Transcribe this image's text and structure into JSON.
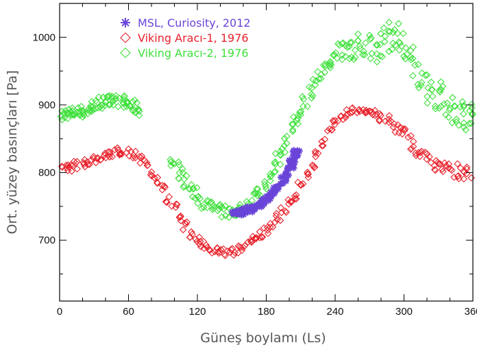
{
  "chart_data": {
    "type": "scatter",
    "title": "",
    "xlabel": "Güneş boylamı (Ls)",
    "ylabel": "Ort. yüzey basınçları [Pa]",
    "xlim": [
      0,
      360
    ],
    "ylim": [
      610,
      1050
    ],
    "xticks": [
      0,
      60,
      120,
      180,
      240,
      300,
      360
    ],
    "yticks": [
      700,
      800,
      900,
      1000
    ],
    "grid": false,
    "legend": "top-left",
    "series": [
      {
        "name": "MSL, Curiosity, 2012",
        "color": "#6a44d8",
        "marker": "asterisk",
        "points": [
          [
            153,
            740
          ],
          [
            156,
            741
          ],
          [
            159,
            742
          ],
          [
            162,
            743
          ],
          [
            165,
            745
          ],
          [
            168,
            747
          ],
          [
            171,
            749
          ],
          [
            174,
            752
          ],
          [
            177,
            755
          ],
          [
            180,
            759
          ],
          [
            183,
            764
          ],
          [
            186,
            769
          ],
          [
            189,
            775
          ],
          [
            192,
            782
          ],
          [
            195,
            790
          ],
          [
            198,
            799
          ],
          [
            201,
            808
          ],
          [
            203,
            816
          ],
          [
            205,
            823
          ],
          [
            206,
            829
          ]
        ]
      },
      {
        "name": "Viking Aracı-1, 1976",
        "color": "#e8202a",
        "marker": "diamond",
        "points": [
          [
            0,
            805
          ],
          [
            5,
            806
          ],
          [
            10,
            808
          ],
          [
            15,
            811
          ],
          [
            20,
            814
          ],
          [
            25,
            817
          ],
          [
            30,
            820
          ],
          [
            35,
            823
          ],
          [
            40,
            826
          ],
          [
            45,
            829
          ],
          [
            50,
            831
          ],
          [
            55,
            831
          ],
          [
            60,
            829
          ],
          [
            65,
            826
          ],
          [
            70,
            820
          ],
          [
            75,
            812
          ],
          [
            80,
            801
          ],
          [
            85,
            789
          ],
          [
            90,
            776
          ],
          [
            95,
            762
          ],
          [
            100,
            748
          ],
          [
            105,
            734
          ],
          [
            110,
            721
          ],
          [
            115,
            710
          ],
          [
            120,
            700
          ],
          [
            125,
            693
          ],
          [
            130,
            688
          ],
          [
            135,
            684
          ],
          [
            140,
            682
          ],
          [
            145,
            682
          ],
          [
            150,
            683
          ],
          [
            155,
            686
          ],
          [
            160,
            690
          ],
          [
            165,
            695
          ],
          [
            170,
            701
          ],
          [
            175,
            708
          ],
          [
            180,
            716
          ],
          [
            185,
            725
          ],
          [
            190,
            734
          ],
          [
            195,
            744
          ],
          [
            200,
            755
          ],
          [
            205,
            767
          ],
          [
            210,
            780
          ],
          [
            215,
            795
          ],
          [
            220,
            812
          ],
          [
            225,
            829
          ],
          [
            230,
            845
          ],
          [
            235,
            859
          ],
          [
            240,
            871
          ],
          [
            245,
            880
          ],
          [
            250,
            887
          ],
          [
            255,
            891
          ],
          [
            260,
            893
          ],
          [
            265,
            893
          ],
          [
            270,
            890
          ],
          [
            275,
            886
          ],
          [
            280,
            881
          ],
          [
            285,
            876
          ],
          [
            290,
            870
          ],
          [
            295,
            863
          ],
          [
            300,
            855
          ],
          [
            305,
            846
          ],
          [
            310,
            837
          ],
          [
            315,
            828
          ],
          [
            320,
            820
          ],
          [
            325,
            813
          ],
          [
            330,
            808
          ],
          [
            335,
            805
          ],
          [
            340,
            803
          ],
          [
            345,
            802
          ],
          [
            350,
            802
          ],
          [
            355,
            803
          ],
          [
            360,
            804
          ]
        ]
      },
      {
        "name": "Viking Aracı-2, 1976",
        "color": "#3de03a",
        "marker": "diamond",
        "points": [
          [
            0,
            882
          ],
          [
            3,
            886
          ],
          [
            6,
            888
          ],
          [
            9,
            888
          ],
          [
            12,
            889
          ],
          [
            15,
            889
          ],
          [
            18,
            890
          ],
          [
            21,
            891
          ],
          [
            24,
            892
          ],
          [
            27,
            895
          ],
          [
            30,
            899
          ],
          [
            33,
            902
          ],
          [
            36,
            904
          ],
          [
            39,
            904
          ],
          [
            42,
            905
          ],
          [
            45,
            905
          ],
          [
            48,
            905
          ],
          [
            51,
            906
          ],
          [
            54,
            905
          ],
          [
            57,
            904
          ],
          [
            60,
            901
          ],
          [
            63,
            898
          ],
          [
            66,
            895
          ],
          [
            68,
            893
          ],
          [
            98,
            815
          ],
          [
            102,
            808
          ],
          [
            106,
            798
          ],
          [
            110,
            787
          ],
          [
            114,
            777
          ],
          [
            118,
            769
          ],
          [
            122,
            762
          ],
          [
            126,
            756
          ],
          [
            130,
            751
          ],
          [
            134,
            747
          ],
          [
            138,
            744
          ],
          [
            142,
            742
          ],
          [
            146,
            741
          ],
          [
            150,
            741
          ],
          [
            154,
            742
          ],
          [
            158,
            745
          ],
          [
            162,
            750
          ],
          [
            166,
            757
          ],
          [
            170,
            765
          ],
          [
            174,
            774
          ],
          [
            178,
            784
          ],
          [
            182,
            795
          ],
          [
            186,
            807
          ],
          [
            190,
            820
          ],
          [
            194,
            834
          ],
          [
            198,
            848
          ],
          [
            202,
            863
          ],
          [
            206,
            878
          ],
          [
            210,
            892
          ],
          [
            214,
            906
          ],
          [
            218,
            919
          ],
          [
            222,
            931
          ],
          [
            226,
            942
          ],
          [
            230,
            952
          ],
          [
            234,
            961
          ],
          [
            238,
            968
          ],
          [
            242,
            974
          ],
          [
            246,
            979
          ],
          [
            250,
            983
          ],
          [
            254,
            986
          ],
          [
            258,
            988
          ],
          [
            262,
            989
          ],
          [
            266,
            988
          ],
          [
            270,
            986
          ],
          [
            274,
            985
          ],
          [
            278,
            987
          ],
          [
            282,
            993
          ],
          [
            286,
            1000
          ],
          [
            290,
            1004
          ],
          [
            294,
            1000
          ],
          [
            298,
            990
          ],
          [
            302,
            978
          ],
          [
            306,
            965
          ],
          [
            310,
            953
          ],
          [
            314,
            942
          ],
          [
            318,
            932
          ],
          [
            322,
            924
          ],
          [
            326,
            917
          ],
          [
            330,
            911
          ],
          [
            334,
            905
          ],
          [
            338,
            900
          ],
          [
            342,
            896
          ],
          [
            346,
            892
          ],
          [
            350,
            889
          ],
          [
            354,
            886
          ],
          [
            358,
            884
          ],
          [
            360,
            883
          ]
        ]
      }
    ]
  }
}
